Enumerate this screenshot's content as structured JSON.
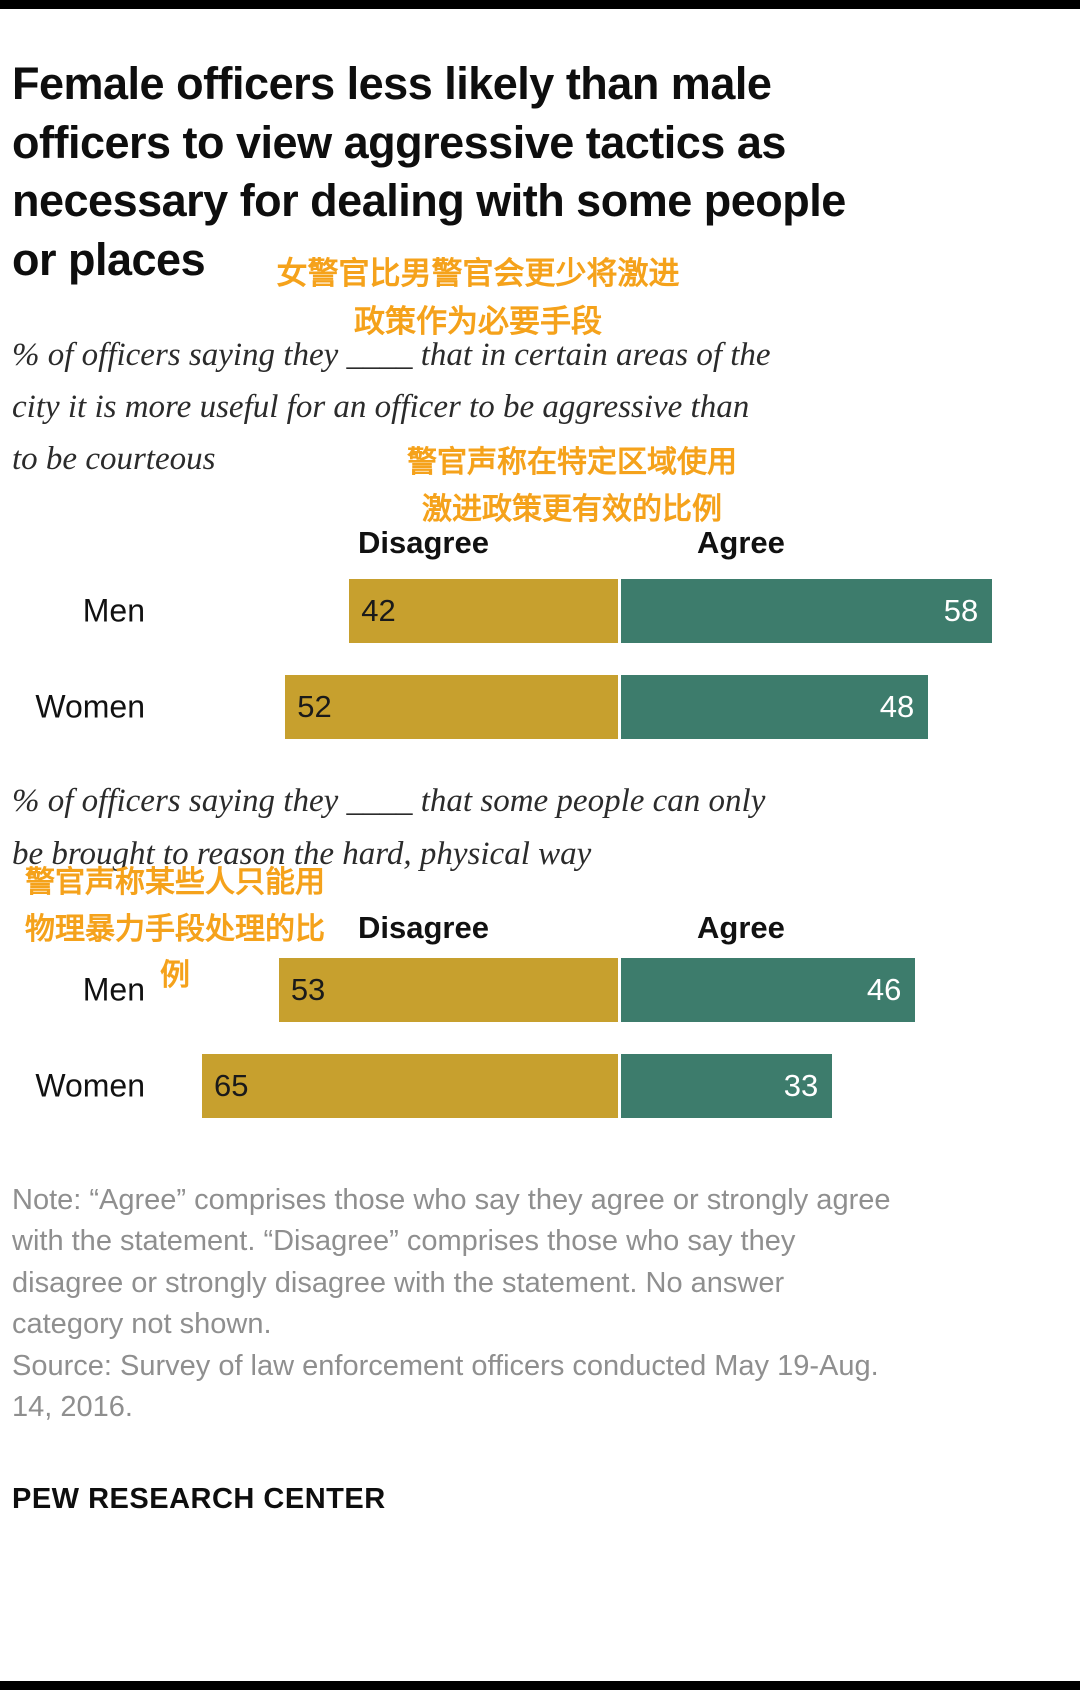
{
  "colors": {
    "disagree_gold": "#C7A02E",
    "agree_teal": "#3D7C6C",
    "annotation_orange": "#F5A21B",
    "note_gray": "#8F8F8F",
    "rule_black": "#000000"
  },
  "header": {
    "title": "Female officers less likely than male officers to view aggressive tactics as necessary for dealing with some people or places",
    "title_lines": [
      "Female officers less likely than male",
      "officers to view aggressive tactics as",
      "necessary for dealing with some people",
      "or places"
    ]
  },
  "annotations": {
    "title_zh": {
      "text": "女警官比男警官会更少将激进政策作为必要手段",
      "lines": [
        "女警官比男警官会更少将激进",
        "政策作为必要手段"
      ]
    },
    "chart1_zh": {
      "text": "警官声称在特定区域使用激进政策更有效的比例",
      "lines": [
        "警官声称在特定区域使用",
        "激进政策更有效的比例"
      ]
    },
    "chart2_zh": {
      "text": "警官声称某些人只能用物理暴力手段处理的比例",
      "lines": [
        "警官声称某些人只能用",
        "物理暴力手段处理的比",
        "例"
      ]
    }
  },
  "chart_data": [
    {
      "type": "bar",
      "orientation": "horizontal-diverging",
      "title": "% of officers saying they ____ that in certain areas of the city it is more useful for an officer to be aggressive than to be courteous",
      "title_lines": [
        "% of officers saying they ____ that in certain areas of the",
        "city it is more useful for an officer to be aggressive than",
        "to be courteous"
      ],
      "categories": [
        "Men",
        "Women"
      ],
      "series": [
        {
          "name": "Disagree",
          "values": [
            42,
            52
          ],
          "color": "#C7A02E",
          "label_side": "left"
        },
        {
          "name": "Agree",
          "values": [
            58,
            48
          ],
          "color": "#3D7C6C",
          "label_side": "right"
        }
      ],
      "value_range": [
        0,
        100
      ],
      "legend_position": "column-headers-above",
      "grid": false
    },
    {
      "type": "bar",
      "orientation": "horizontal-diverging",
      "title": "% of officers saying they ____ that some people can only be brought to reason the hard, physical way",
      "title_lines": [
        "% of officers saying they ____ that some people can only",
        "be brought to reason the hard, physical way"
      ],
      "categories": [
        "Men",
        "Women"
      ],
      "series": [
        {
          "name": "Disagree",
          "values": [
            53,
            65
          ],
          "color": "#C7A02E",
          "label_side": "left"
        },
        {
          "name": "Agree",
          "values": [
            46,
            33
          ],
          "color": "#3D7C6C",
          "label_side": "right"
        }
      ],
      "value_range": [
        0,
        100
      ],
      "legend_position": "column-headers-above",
      "grid": false
    }
  ],
  "note": {
    "note_text": "Note: “Agree” comprises those who say they agree or strongly agree with the statement. “Disagree” comprises those who say they disagree or strongly disagree with the statement. No answer category not shown.",
    "source_text": "Source: Survey of law enforcement officers conducted May 19-Aug. 14, 2016.",
    "lines": [
      "Note: “Agree” comprises those who say they agree or strongly agree",
      "with the statement. “Disagree” comprises those who say they",
      "disagree or strongly disagree with the statement. No answer",
      "category not shown.",
      "Source: Survey of law enforcement officers conducted May 19-Aug.",
      "14, 2016."
    ]
  },
  "footer": {
    "wordmark": "PEW RESEARCH CENTER"
  }
}
